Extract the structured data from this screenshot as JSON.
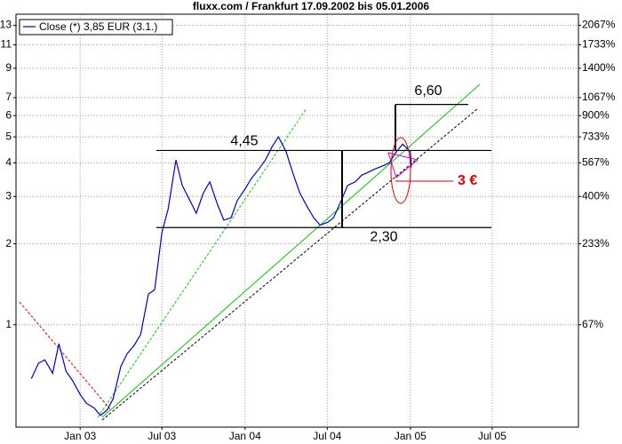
{
  "chart_data": {
    "type": "line",
    "title": "fluxx.com / Frankfurt 17.09.2002 bis 05.01.2006",
    "x": [
      "2002-09-15",
      "2002-10-01",
      "2002-10-15",
      "2002-11-01",
      "2002-11-15",
      "2002-12-01",
      "2002-12-15",
      "2003-01-01",
      "2003-01-15",
      "2003-02-01",
      "2003-02-15",
      "2003-03-01",
      "2003-03-15",
      "2003-04-01",
      "2003-04-15",
      "2003-05-01",
      "2003-05-15",
      "2003-06-01",
      "2003-06-15",
      "2003-07-01",
      "2003-07-15",
      "2003-08-01",
      "2003-08-15",
      "2003-09-01",
      "2003-09-15",
      "2003-10-01",
      "2003-10-15",
      "2003-11-01",
      "2003-11-15",
      "2003-12-01",
      "2003-12-15",
      "2004-01-01",
      "2004-01-15",
      "2004-02-01",
      "2004-02-15",
      "2004-03-01",
      "2004-03-15",
      "2004-04-01",
      "2004-04-15",
      "2004-05-01",
      "2004-05-15",
      "2004-06-01",
      "2004-06-15",
      "2004-07-01",
      "2004-07-15",
      "2004-08-01",
      "2004-08-15",
      "2004-09-01",
      "2004-09-15",
      "2004-10-01",
      "2004-10-15",
      "2004-11-01",
      "2004-11-15",
      "2004-12-01",
      "2004-12-15",
      "2005-01-01",
      "2005-01-03"
    ],
    "series": [
      {
        "name": "Close (*) 3,85 EUR (3.1.)",
        "color": "#0000cc",
        "values": [
          0.63,
          0.72,
          0.74,
          0.66,
          0.85,
          0.67,
          0.62,
          0.55,
          0.51,
          0.49,
          0.46,
          0.48,
          0.53,
          0.7,
          0.78,
          0.84,
          0.92,
          1.3,
          1.35,
          2.2,
          2.7,
          4.1,
          3.3,
          2.9,
          2.6,
          3.1,
          3.4,
          2.8,
          2.45,
          2.5,
          2.9,
          3.2,
          3.5,
          3.8,
          4.1,
          4.6,
          5.0,
          4.4,
          3.7,
          3.1,
          2.8,
          2.5,
          2.35,
          2.4,
          2.5,
          2.9,
          3.3,
          3.4,
          3.6,
          3.7,
          3.8,
          3.9,
          4.0,
          4.4,
          4.7,
          4.4,
          3.85
        ]
      }
    ],
    "log_scale": true,
    "grid": true,
    "legend": "upper left",
    "xlim": [
      "2002-08-12",
      "2006-01-08"
    ],
    "xticks": [
      {
        "value": "2003-01-01",
        "label": "Jan 03"
      },
      {
        "value": "2003-07-01",
        "label": "Jul 03"
      },
      {
        "value": "2004-01-01",
        "label": "Jan 04"
      },
      {
        "value": "2004-07-01",
        "label": "Jul 04"
      },
      {
        "value": "2005-01-01",
        "label": "Jan 05"
      },
      {
        "value": "2005-07-01",
        "label": "Jul 05"
      }
    ],
    "ylim": [
      0.416,
      14.3
    ],
    "yticks": [
      1,
      2,
      3,
      4,
      5,
      6,
      7,
      9,
      11,
      13
    ],
    "y2lim": [
      0.416,
      14.3
    ],
    "y2ticks": [
      {
        "value": 1,
        "label": "67%"
      },
      {
        "value": 2,
        "label": "233%"
      },
      {
        "value": 3,
        "label": "400%"
      },
      {
        "value": 4,
        "label": "567%"
      },
      {
        "value": 5,
        "label": "733%"
      },
      {
        "value": 6,
        "label": "900%"
      },
      {
        "value": 7,
        "label": "1067%"
      },
      {
        "value": 9,
        "label": "1400%"
      },
      {
        "value": 11,
        "label": "1733%"
      },
      {
        "value": 13,
        "label": "2067%"
      }
    ],
    "levels": [
      {
        "label": "4,45",
        "value": 4.45
      },
      {
        "label": "2,30",
        "value": 2.3
      },
      {
        "label": "6,60",
        "value": 6.6
      }
    ],
    "note": "3 €"
  }
}
